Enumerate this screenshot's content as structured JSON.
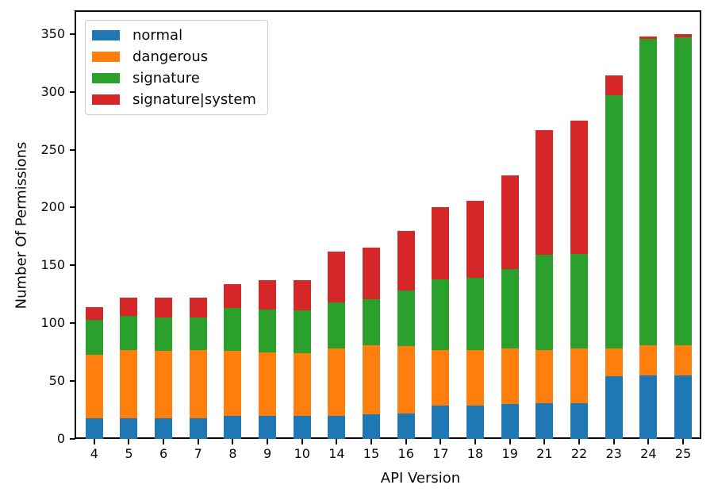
{
  "chart_data": {
    "type": "bar",
    "stacked": true,
    "title": "",
    "xlabel": "API Version",
    "ylabel": "Number Of Permissions",
    "categories": [
      "4",
      "5",
      "6",
      "7",
      "8",
      "9",
      "10",
      "14",
      "15",
      "16",
      "17",
      "18",
      "19",
      "21",
      "22",
      "23",
      "24",
      "25"
    ],
    "series": [
      {
        "name": "normal",
        "color": "#1f77b4",
        "values": [
          18,
          18,
          18,
          18,
          20,
          20,
          20,
          20,
          21,
          22,
          29,
          29,
          30,
          31,
          31,
          54,
          55,
          55
        ]
      },
      {
        "name": "dangerous",
        "color": "#ff7f0e",
        "values": [
          55,
          59,
          58,
          59,
          56,
          55,
          54,
          58,
          60,
          58,
          48,
          48,
          48,
          46,
          47,
          24,
          26,
          26
        ]
      },
      {
        "name": "signature",
        "color": "#2ca02c",
        "values": [
          30,
          29,
          29,
          28,
          37,
          37,
          37,
          40,
          40,
          48,
          61,
          62,
          69,
          82,
          82,
          219,
          265,
          266
        ]
      },
      {
        "name": "signature|system",
        "color": "#d62728",
        "values": [
          11,
          16,
          17,
          17,
          21,
          25,
          26,
          44,
          44,
          52,
          62,
          67,
          81,
          108,
          115,
          17,
          2,
          3
        ]
      }
    ],
    "totals": [
      114,
      122,
      122,
      122,
      134,
      137,
      137,
      162,
      165,
      180,
      200,
      206,
      228,
      267,
      275,
      314,
      348,
      350
    ],
    "yticks": [
      0,
      50,
      100,
      150,
      200,
      250,
      300,
      350
    ],
    "ylim": [
      0,
      369
    ],
    "grid": false,
    "legend_position": "upper left",
    "axis_color": "#0a0a0a"
  }
}
